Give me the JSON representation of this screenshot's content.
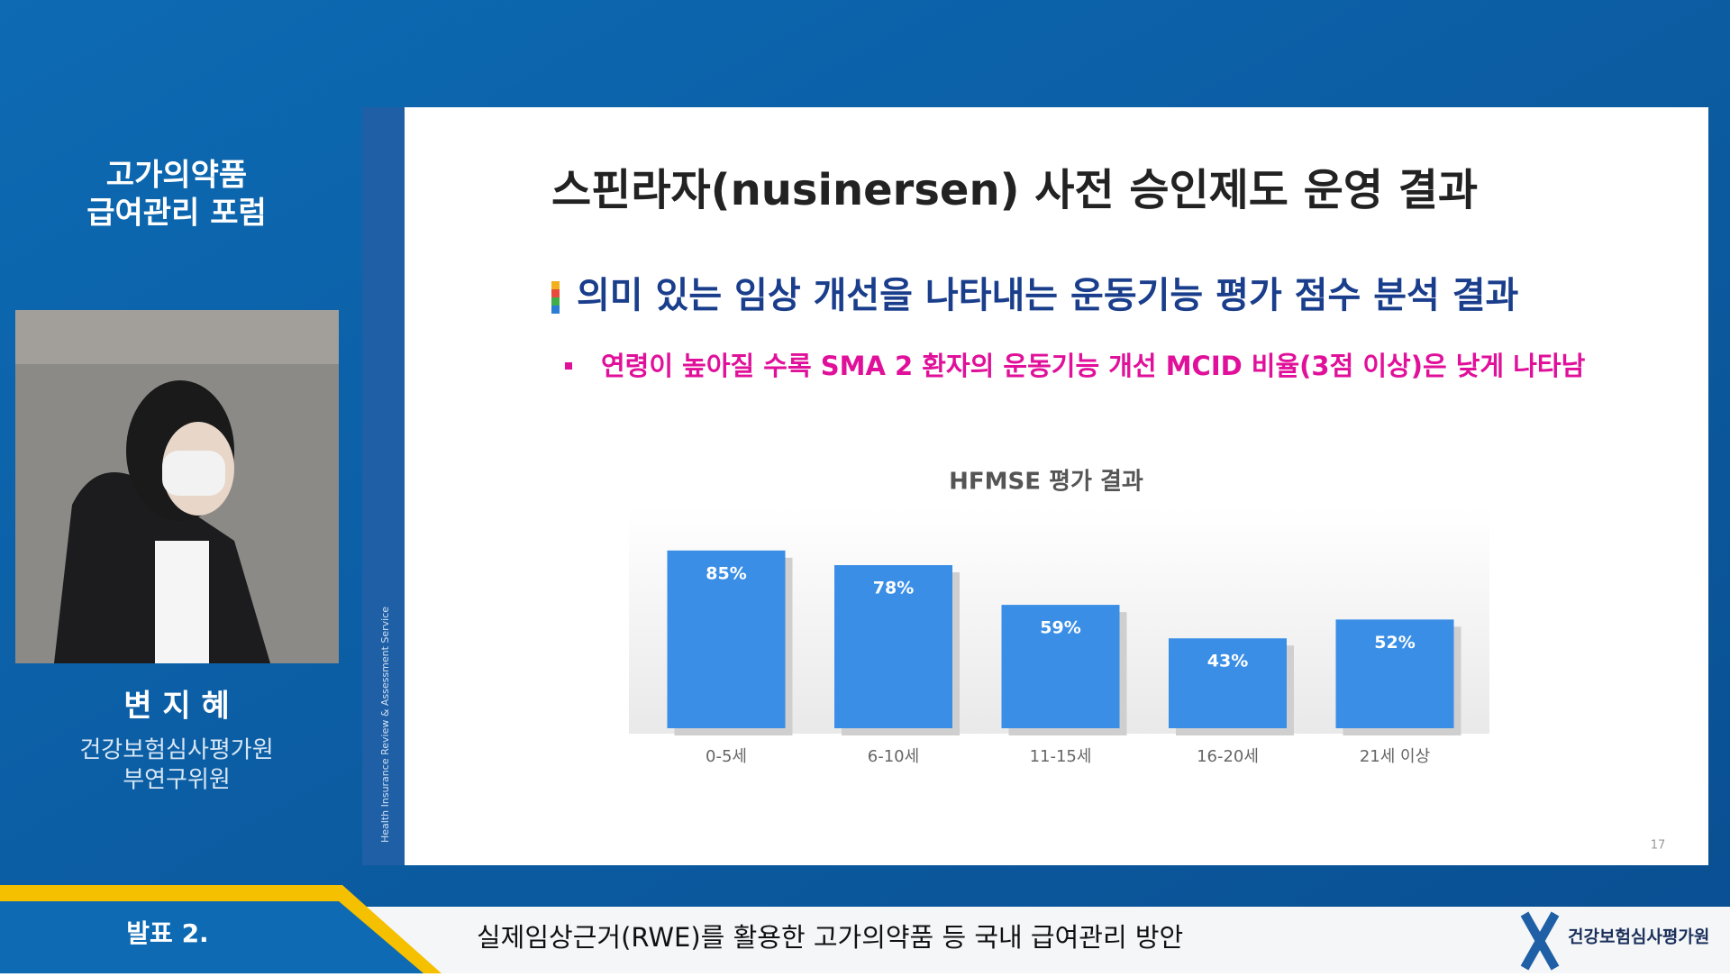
{
  "forum": {
    "title_line1": "고가의약품",
    "title_line2": "급여관리 포럼"
  },
  "speaker": {
    "name": "변 지 혜",
    "organization": "건강보험심사평가원",
    "position": "부연구위원"
  },
  "slide": {
    "side_text": "Health Insurance Review & Assessment Service",
    "title": "스핀라자(nusinersen) 사전 승인제도 운영 결과",
    "heading": "의미 있는 임상 개선을 나타내는 운동기능 평가 점수 분석 결과",
    "bullet": "연령이 높아질 수록 SMA 2 환자의 운동기능 개선 MCID 비율(3점 이상)은 낮게 나타남",
    "chart": {
      "type": "bar",
      "title": "HFMSE 평가 결과",
      "categories": [
        "0-5세",
        "6-10세",
        "11-15세",
        "16-20세",
        "21세 이상"
      ],
      "values": [
        85,
        78,
        59,
        43,
        52
      ],
      "value_labels": [
        "85%",
        "78%",
        "59%",
        "43%",
        "52%"
      ],
      "color": "#3a8ee6"
    },
    "page_number": "17"
  },
  "footer": {
    "session": "발표 2.",
    "talk_title": "실제임상근거(RWE)를 활용한 고가의약품 등 국내 급여관리 방안",
    "logo": "건강보험심사평가원"
  }
}
